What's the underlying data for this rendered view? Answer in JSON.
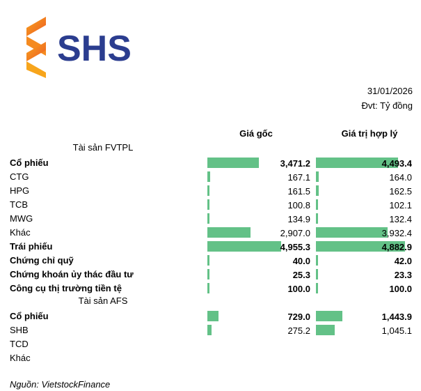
{
  "logo": {
    "text": "SHS"
  },
  "header": {
    "date": "31/01/2026",
    "unit": "Đvt: Tỷ đồng"
  },
  "columns": {
    "cost": "Giá gốc",
    "fair": "Giá trị hợp lý"
  },
  "sections": [
    {
      "title": "Tài sản FVTPL",
      "rows": [
        {
          "label": "Cổ phiếu",
          "cost": "3,471.2",
          "fair": "4,493.4",
          "cost_num": 3471.2,
          "fair_num": 4493.4,
          "bold": true
        },
        {
          "label": "CTG",
          "cost": "167.1",
          "fair": "164.0",
          "cost_num": 167.1,
          "fair_num": 164.0,
          "bold": false
        },
        {
          "label": "HPG",
          "cost": "161.5",
          "fair": "162.5",
          "cost_num": 161.5,
          "fair_num": 162.5,
          "bold": false
        },
        {
          "label": "TCB",
          "cost": "100.8",
          "fair": "102.1",
          "cost_num": 100.8,
          "fair_num": 102.1,
          "bold": false
        },
        {
          "label": "MWG",
          "cost": "134.9",
          "fair": "132.4",
          "cost_num": 134.9,
          "fair_num": 132.4,
          "bold": false
        },
        {
          "label": "Khác",
          "cost": "2,907.0",
          "fair": "3,932.4",
          "cost_num": 2907.0,
          "fair_num": 3932.4,
          "bold": false
        },
        {
          "label": "Trái phiếu",
          "cost": "4,955.3",
          "fair": "4,882.9",
          "cost_num": 4955.3,
          "fair_num": 4882.9,
          "bold": true
        },
        {
          "label": "Chứng chỉ quỹ",
          "cost": "40.0",
          "fair": "42.0",
          "cost_num": 40.0,
          "fair_num": 42.0,
          "bold": true
        },
        {
          "label": "Chứng khoán ủy thác đầu tư",
          "cost": "25.3",
          "fair": "23.3",
          "cost_num": 25.3,
          "fair_num": 23.3,
          "bold": true
        },
        {
          "label": "Công cụ thị trường tiền tệ",
          "cost": "100.0",
          "fair": "100.0",
          "cost_num": 100.0,
          "fair_num": 100.0,
          "bold": true
        }
      ]
    },
    {
      "title": "Tài sản AFS",
      "rows": [
        {
          "label": "Cổ phiếu",
          "cost": "729.0",
          "fair": "1,443.9",
          "cost_num": 729.0,
          "fair_num": 1443.9,
          "bold": true
        },
        {
          "label": "SHB",
          "cost": "275.2",
          "fair": "1,045.1",
          "cost_num": 275.2,
          "fair_num": 1045.1,
          "bold": false
        },
        {
          "label": "TCD",
          "cost": "",
          "fair": "",
          "cost_num": null,
          "fair_num": null,
          "bold": false
        },
        {
          "label": "Khác",
          "cost": "",
          "fair": "",
          "cost_num": null,
          "fair_num": null,
          "bold": false
        }
      ]
    }
  ],
  "bar_max": {
    "cost": 4955.3,
    "fair": 4882.9
  },
  "source": "Nguồn: VietstockFinance",
  "colors": {
    "bar": "#63c187",
    "logo_blue": "#2b3d8f",
    "logo_orange": "#f58220"
  }
}
